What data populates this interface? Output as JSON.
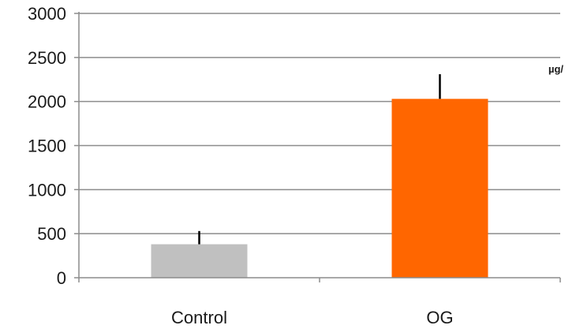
{
  "chart_data": {
    "type": "bar",
    "categories": [
      "Control",
      "OG"
    ],
    "values": [
      380,
      2030
    ],
    "error_upper": [
      530,
      2310
    ],
    "bar_colors": [
      "#c0c0c0",
      "#ff6600"
    ],
    "ylim": [
      0,
      3000
    ],
    "yticks": [
      0,
      500,
      1000,
      1500,
      2000,
      2500,
      3000
    ],
    "ytick_labels": [
      "0",
      "500",
      "1000",
      "1500",
      "2000",
      "2500",
      "3000"
    ],
    "ylabel": "µg/",
    "xlabel": "",
    "title": "",
    "grid": true
  }
}
